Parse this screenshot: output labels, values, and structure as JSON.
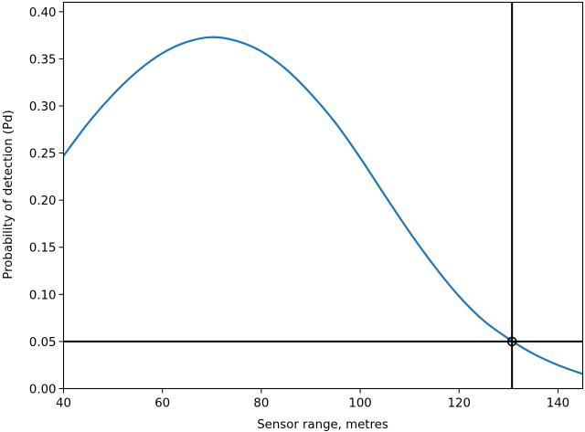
{
  "chart_data": {
    "type": "line",
    "title": "",
    "xlabel": "Sensor range, metres",
    "ylabel": "Probability of detection (Pd)",
    "xlim": [
      40,
      145
    ],
    "ylim": [
      0,
      0.41
    ],
    "xticks": [
      40,
      60,
      80,
      100,
      120,
      140
    ],
    "yticks": [
      0.0,
      0.05,
      0.1,
      0.15,
      0.2,
      0.25,
      0.3,
      0.35,
      0.4
    ],
    "ytick_labels": [
      "0.00",
      "0.05",
      "0.10",
      "0.15",
      "0.20",
      "0.25",
      "0.30",
      "0.35",
      "0.40"
    ],
    "grid": false,
    "legend": null,
    "series": [
      {
        "name": "Pd",
        "color": "#1f77b4",
        "x": [
          40,
          45,
          50,
          55,
          60,
          65,
          70,
          75,
          80,
          85,
          90,
          95,
          100,
          105,
          110,
          115,
          120,
          125,
          130,
          135,
          140,
          145
        ],
        "values": [
          0.247,
          0.282,
          0.312,
          0.337,
          0.356,
          0.368,
          0.373,
          0.369,
          0.358,
          0.339,
          0.313,
          0.282,
          0.245,
          0.205,
          0.166,
          0.13,
          0.098,
          0.072,
          0.053,
          0.037,
          0.025,
          0.0155
        ]
      }
    ],
    "reference_lines": {
      "horizontal": {
        "y": 0.05,
        "color": "#000000"
      },
      "vertical": {
        "x": 130.7,
        "color": "#000000"
      }
    },
    "marker": {
      "x": 130.7,
      "y": 0.05,
      "shape": "open-circle",
      "color": "#000000"
    }
  }
}
